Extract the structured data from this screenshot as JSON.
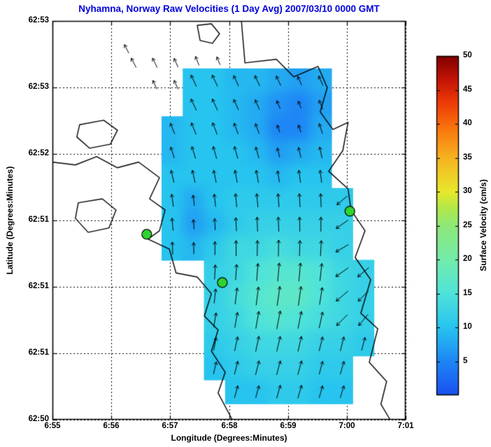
{
  "chart_data": {
    "type": "vector_field_map",
    "title": "Nyhamna, Norway Raw Velocities (1 Day Avg) 2007/03/10 0000 GMT",
    "title_color": "#0000dd",
    "xlabel": "Longitude (Degrees:Minutes)",
    "ylabel": "Latitude (Degrees:Minutes)",
    "x_ticks": [
      "6:55",
      "6:56",
      "6:57",
      "6:58",
      "6:59",
      "7:00",
      "7:01"
    ],
    "y_ticks_top_to_bottom": [
      "62:53",
      "62:53",
      "62:52",
      "62:51",
      "62:51",
      "62:51",
      "62:50"
    ],
    "grid_on": true,
    "units": "cm/s",
    "colorbar": {
      "label": "Surface Velocity (cm/s)",
      "min": 0,
      "max": 50,
      "ticks": [
        "5",
        "10",
        "15",
        "20",
        "25",
        "30",
        "35",
        "40",
        "45",
        "50"
      ],
      "colormap_stops": [
        [
          0.0,
          "#1a50f0"
        ],
        [
          0.1,
          "#1e86f5"
        ],
        [
          0.2,
          "#27c4ef"
        ],
        [
          0.3,
          "#4fe3da"
        ],
        [
          0.4,
          "#74ecab"
        ],
        [
          0.5,
          "#8ee878"
        ],
        [
          0.55,
          "#b0e84a"
        ],
        [
          0.6,
          "#e8e82b"
        ],
        [
          0.7,
          "#f7b322"
        ],
        [
          0.78,
          "#f97a0e"
        ],
        [
          0.86,
          "#ef3c06"
        ],
        [
          0.93,
          "#c31405"
        ],
        [
          1.0,
          "#7f0000"
        ]
      ]
    },
    "velocity_grid": {
      "comment_units": "fx,fy are fractional axis coords (0-1, fy from bottom); magnitudes in cm/s; directions deg CCW from east",
      "fx0": 0.22,
      "fy0": 0.85,
      "dfx": 0.06,
      "dfy": -0.06,
      "magnitudes": [
        [
          null,
          null,
          null,
          10,
          10,
          9,
          9,
          8,
          7,
          8,
          null,
          null
        ],
        [
          null,
          null,
          null,
          10,
          10,
          9,
          8,
          6,
          5,
          7,
          null,
          null
        ],
        [
          null,
          null,
          9,
          10,
          10,
          9,
          8,
          5,
          5,
          8,
          null,
          null
        ],
        [
          null,
          null,
          9,
          10,
          10,
          10,
          9,
          7,
          8,
          9,
          null,
          null
        ],
        [
          null,
          null,
          10,
          10,
          10,
          10,
          10,
          9,
          10,
          10,
          null,
          null
        ],
        [
          null,
          null,
          10,
          8,
          10,
          11,
          11,
          11,
          11,
          11,
          11,
          null
        ],
        [
          null,
          null,
          10,
          7,
          9,
          11,
          12,
          12,
          12,
          12,
          12,
          null
        ],
        [
          null,
          null,
          10,
          9,
          11,
          13,
          13,
          14,
          13,
          13,
          12,
          null
        ],
        [
          null,
          null,
          null,
          null,
          12,
          13,
          15,
          16,
          16,
          15,
          13,
          12
        ],
        [
          null,
          null,
          null,
          null,
          12,
          14,
          16,
          17,
          17,
          15,
          13,
          12
        ],
        [
          null,
          null,
          null,
          null,
          12,
          13,
          15,
          16,
          15,
          14,
          13,
          12
        ],
        [
          null,
          null,
          null,
          null,
          11,
          12,
          13,
          13,
          13,
          12,
          12,
          11
        ],
        [
          null,
          null,
          null,
          null,
          10,
          11,
          12,
          12,
          12,
          11,
          11,
          null
        ],
        [
          null,
          null,
          null,
          null,
          null,
          10,
          10,
          11,
          11,
          10,
          10,
          null
        ]
      ],
      "directions_deg": [
        [
          null,
          null,
          null,
          115,
          115,
          115,
          115,
          115,
          115,
          115,
          null,
          null
        ],
        [
          null,
          null,
          null,
          115,
          114,
          114,
          113,
          113,
          112,
          112,
          null,
          null
        ],
        [
          null,
          null,
          112,
          112,
          111,
          110,
          110,
          109,
          108,
          108,
          null,
          null
        ],
        [
          null,
          null,
          108,
          107,
          106,
          105,
          105,
          104,
          103,
          102,
          null,
          null
        ],
        [
          null,
          null,
          103,
          102,
          101,
          100,
          100,
          99,
          98,
          97,
          null,
          null
        ],
        [
          null,
          null,
          98,
          97,
          96,
          95,
          95,
          94,
          93,
          92,
          220,
          null
        ],
        [
          null,
          null,
          95,
          94,
          93,
          93,
          92,
          92,
          91,
          90,
          215,
          null
        ],
        [
          null,
          null,
          92,
          91,
          90,
          90,
          89,
          89,
          88,
          87,
          210,
          null
        ],
        [
          null,
          null,
          null,
          null,
          87,
          86,
          86,
          85,
          85,
          84,
          215,
          220
        ],
        [
          null,
          null,
          null,
          null,
          84,
          83,
          83,
          82,
          82,
          81,
          220,
          225
        ],
        [
          null,
          null,
          null,
          null,
          81,
          80,
          80,
          79,
          79,
          78,
          225,
          230
        ],
        [
          null,
          null,
          null,
          null,
          79,
          78,
          78,
          77,
          77,
          76,
          76,
          75
        ],
        [
          null,
          null,
          null,
          null,
          77,
          76,
          76,
          75,
          75,
          75,
          74,
          null
        ],
        [
          null,
          null,
          null,
          null,
          null,
          75,
          75,
          74,
          74,
          74,
          73,
          null
        ]
      ]
    },
    "extra_arrows": [
      {
        "fx": 0.21,
        "fy": 0.93,
        "mag": 7,
        "dir": 117
      },
      {
        "fx": 0.23,
        "fy": 0.895,
        "mag": 8,
        "dir": 118
      },
      {
        "fx": 0.29,
        "fy": 0.895,
        "mag": 8,
        "dir": 116
      },
      {
        "fx": 0.35,
        "fy": 0.895,
        "mag": 7,
        "dir": 114
      },
      {
        "fx": 0.41,
        "fy": 0.9,
        "mag": 7,
        "dir": 112
      },
      {
        "fx": 0.47,
        "fy": 0.9,
        "mag": 6,
        "dir": 112
      },
      {
        "fx": 0.29,
        "fy": 0.84,
        "mag": 7,
        "dir": 115
      },
      {
        "fx": 0.35,
        "fy": 0.84,
        "mag": 7,
        "dir": 113
      }
    ],
    "stations": {
      "color": "#2fd42f",
      "points": [
        [
          0.267,
          0.465
        ],
        [
          0.481,
          0.344
        ],
        [
          0.842,
          0.523
        ]
      ]
    },
    "coastlines": [
      {
        "closed": false,
        "points": [
          [
            0.535,
            1.0
          ],
          [
            0.545,
            0.895
          ],
          [
            0.634,
            0.904
          ],
          [
            0.683,
            0.86
          ],
          [
            0.752,
            0.886
          ],
          [
            0.778,
            0.833
          ],
          [
            0.758,
            0.772
          ],
          [
            0.794,
            0.728
          ],
          [
            0.837,
            0.746
          ],
          [
            0.822,
            0.675
          ],
          [
            0.782,
            0.623
          ],
          [
            0.837,
            0.579
          ],
          [
            0.845,
            0.526
          ],
          [
            0.885,
            0.474
          ],
          [
            0.857,
            0.407
          ],
          [
            0.901,
            0.351
          ],
          [
            0.873,
            0.267
          ],
          [
            0.921,
            0.228
          ],
          [
            0.897,
            0.144
          ],
          [
            0.946,
            0.096
          ],
          [
            0.93,
            0.039
          ],
          [
            0.956,
            0.0
          ]
        ]
      },
      {
        "closed": false,
        "points": [
          [
            0.0,
            0.646
          ],
          [
            0.065,
            0.639
          ],
          [
            0.125,
            0.66
          ],
          [
            0.184,
            0.632
          ],
          [
            0.244,
            0.646
          ],
          [
            0.303,
            0.607
          ],
          [
            0.275,
            0.554
          ],
          [
            0.319,
            0.526
          ],
          [
            0.303,
            0.474
          ],
          [
            0.271,
            0.453
          ],
          [
            0.331,
            0.428
          ],
          [
            0.35,
            0.368
          ],
          [
            0.41,
            0.358
          ],
          [
            0.45,
            0.316
          ],
          [
            0.43,
            0.26
          ],
          [
            0.469,
            0.225
          ],
          [
            0.45,
            0.172
          ],
          [
            0.489,
            0.119
          ],
          [
            0.469,
            0.067
          ],
          [
            0.509,
            0.0
          ]
        ]
      },
      {
        "closed": true,
        "points": [
          [
            0.41,
            0.989
          ],
          [
            0.45,
            0.993
          ],
          [
            0.473,
            0.968
          ],
          [
            0.453,
            0.944
          ],
          [
            0.418,
            0.951
          ]
        ]
      },
      {
        "closed": true,
        "points": [
          [
            0.077,
            0.74
          ],
          [
            0.145,
            0.751
          ],
          [
            0.184,
            0.726
          ],
          [
            0.164,
            0.691
          ],
          [
            0.105,
            0.681
          ],
          [
            0.069,
            0.709
          ]
        ]
      },
      {
        "closed": true,
        "points": [
          [
            0.073,
            0.544
          ],
          [
            0.141,
            0.554
          ],
          [
            0.18,
            0.526
          ],
          [
            0.16,
            0.481
          ],
          [
            0.101,
            0.47
          ],
          [
            0.065,
            0.505
          ]
        ]
      }
    ]
  }
}
